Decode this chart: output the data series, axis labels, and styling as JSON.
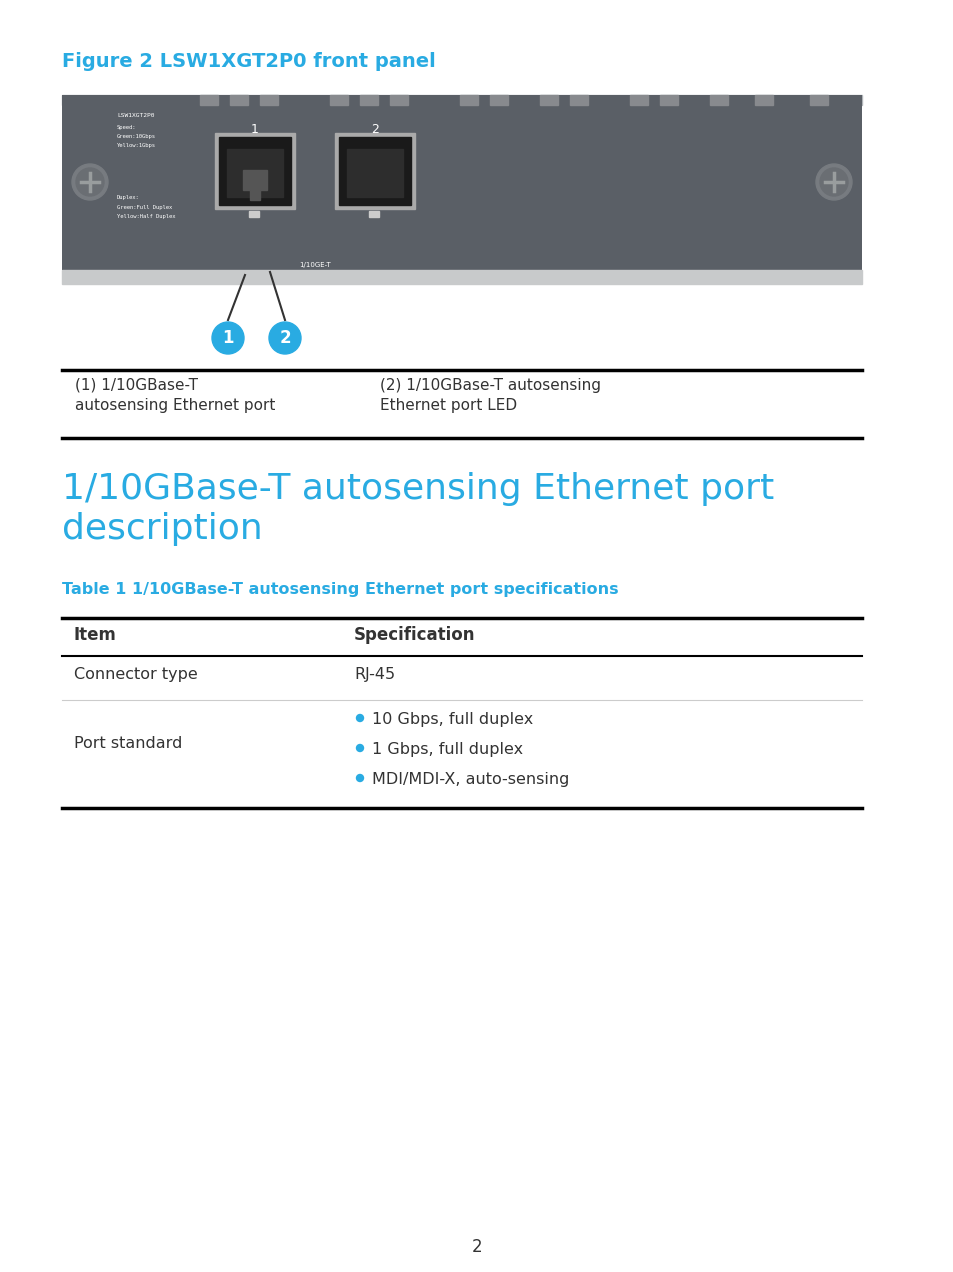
{
  "bg_color": "#ffffff",
  "cyan_color": "#29abe2",
  "dark_color": "#333333",
  "figure_caption": "Figure 2 LSW1XGT2P0 front panel",
  "caption_left_line1": "(1) 1/10GBase-T",
  "caption_left_line2": "autosensing Ethernet port",
  "caption_right_line1": "(2) 1/10GBase-T autosensing",
  "caption_right_line2": "Ethernet port LED",
  "section_title_line1": "1/10GBase-T autosensing Ethernet port",
  "section_title_line2": "description",
  "table_title": "Table 1 1/10GBase-T autosensing Ethernet port specifications",
  "table_header_col1": "Item",
  "table_header_col2": "Specification",
  "row1_col1": "Connector type",
  "row1_col2": "RJ-45",
  "row2_col1": "Port standard",
  "bullets": [
    "10 Gbps, full duplex",
    "1 Gbps, full duplex",
    "MDI/MDI-X, auto-sensing"
  ],
  "page_number": "2",
  "panel_color": "#5a5f66",
  "port_bg": "#1a1a1a",
  "panel_top_rail_color": "#b0b4b8",
  "panel_bottom_rail_color": "#c8cacb",
  "screw_outer_color": "#777b80",
  "screw_inner_color": "#6a6e73",
  "screw_cross_color": "#999d9e",
  "bump_color": "#888a8e",
  "frame_color": "#aaaaaa",
  "insert_color": "#2d2d2d",
  "plug_color": "#555555",
  "led_color": "#cccccc"
}
